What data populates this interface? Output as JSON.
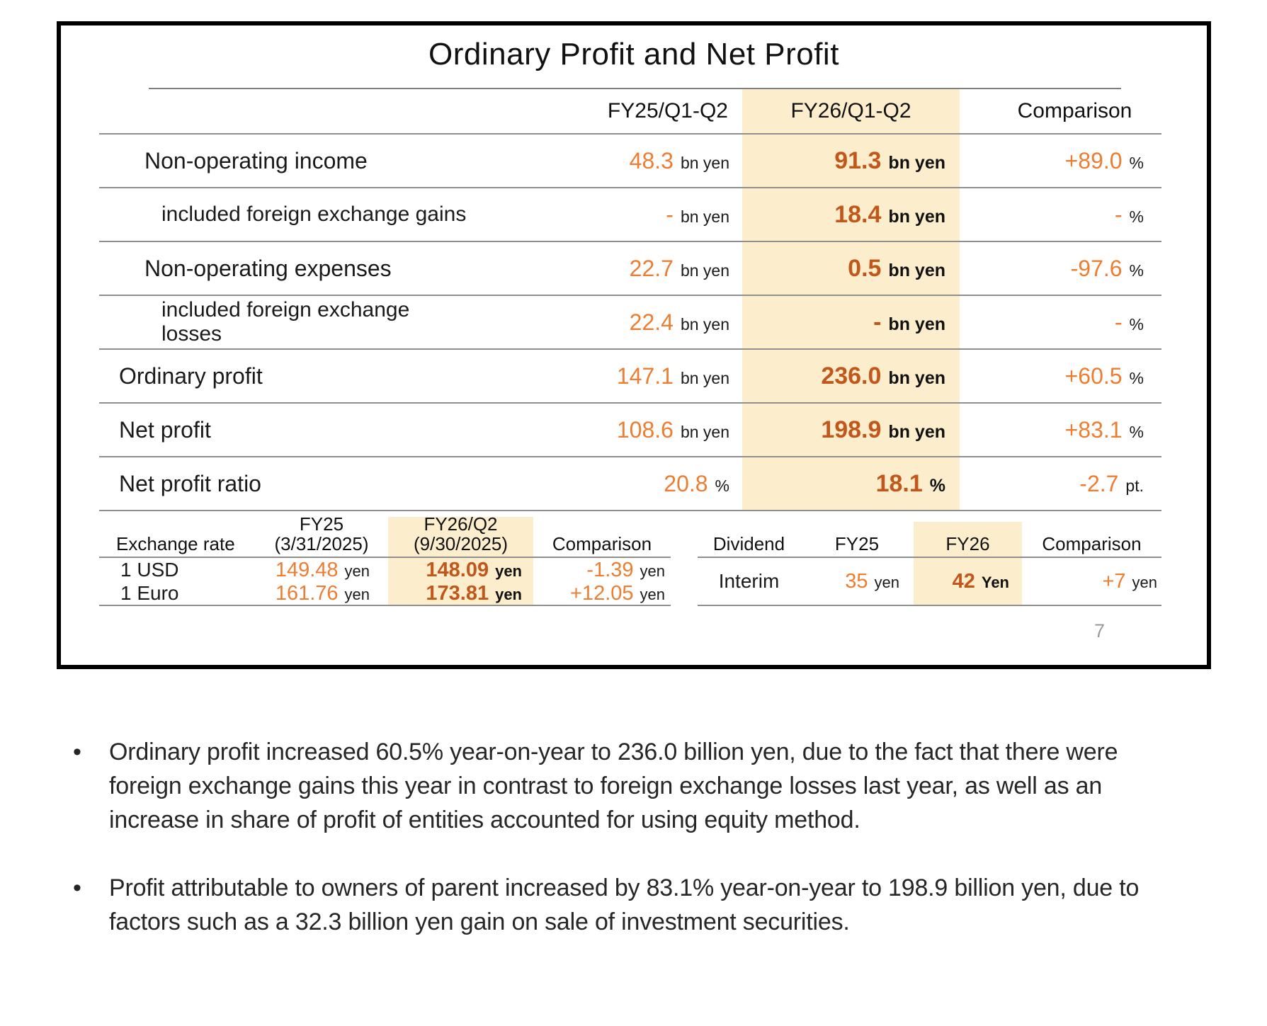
{
  "slide": {
    "title": "Ordinary Profit and Net Profit",
    "page_number": "7",
    "table": {
      "headers": {
        "fy25": "FY25/Q1-Q2",
        "fy26": "FY26/Q1-Q2",
        "cmp": "Comparison"
      },
      "rows": [
        {
          "label": "Non-operating income",
          "fy25": "48.3",
          "fy25_u": "bn yen",
          "fy26": "91.3",
          "fy26_u": "bn yen",
          "cmp": "+89.0",
          "cmp_u": "%"
        },
        {
          "label": "included foreign exchange gains",
          "fy25": "-",
          "fy25_u": "bn yen",
          "fy26": "18.4",
          "fy26_u": "bn yen",
          "cmp": "-",
          "cmp_u": "%"
        },
        {
          "label": "Non-operating expenses",
          "fy25": "22.7",
          "fy25_u": "bn yen",
          "fy26": "0.5",
          "fy26_u": "bn yen",
          "cmp": "-97.6",
          "cmp_u": "%"
        },
        {
          "label": "included foreign exchange losses",
          "fy25": "22.4",
          "fy25_u": "bn yen",
          "fy26": "-",
          "fy26_u": "bn yen",
          "cmp": "-",
          "cmp_u": "%"
        },
        {
          "label": "Ordinary profit",
          "fy25": "147.1",
          "fy25_u": "bn yen",
          "fy26": "236.0",
          "fy26_u": "bn yen",
          "cmp": "+60.5",
          "cmp_u": "%"
        },
        {
          "label": "Net profit",
          "fy25": "108.6",
          "fy25_u": "bn yen",
          "fy26": "198.9",
          "fy26_u": "bn yen",
          "cmp": "+83.1",
          "cmp_u": "%"
        },
        {
          "label": "Net profit ratio",
          "fy25": "20.8",
          "fy25_u": "%",
          "fy26": "18.1",
          "fy26_u": "%",
          "cmp": "-2.7",
          "cmp_u": "pt."
        }
      ]
    },
    "exchange": {
      "label": "Exchange rate",
      "headers": {
        "fy25_1": "FY25",
        "fy25_2": "(3/31/2025)",
        "fy26_1": "FY26/Q2",
        "fy26_2": "(9/30/2025)",
        "cmp": "Comparison"
      },
      "rows": [
        {
          "label": "1 USD",
          "fy25": "149.48",
          "fy25_u": "yen",
          "fy26": "148.09",
          "fy26_u": "yen",
          "cmp": "-1.39",
          "cmp_u": "yen"
        },
        {
          "label": "1 Euro",
          "fy25": "161.76",
          "fy25_u": "yen",
          "fy26": "173.81",
          "fy26_u": "yen",
          "cmp": "+12.05",
          "cmp_u": "yen"
        }
      ]
    },
    "dividend": {
      "label": "Dividend",
      "headers": {
        "fy25": "FY25",
        "fy26": "FY26",
        "cmp": "Comparison"
      },
      "rows": [
        {
          "label": "Interim",
          "fy25": "35",
          "fy25_u": "yen",
          "fy26": "42",
          "fy26_u": "Yen",
          "cmp": "+7",
          "cmp_u": "yen"
        }
      ]
    },
    "bullets": [
      "Ordinary profit increased 60.5% year-on-year to 236.0 billion yen, due to the fact that there were foreign exchange gains this year in contrast to foreign exchange losses last year, as well as an increase in share of profit of entities accounted for using equity method.",
      "Profit attributable to owners of parent increased by 83.1% year-on-year to 198.9 billion yen, due to factors such as a 32.3 billion yen gain on sale of investment securities."
    ]
  },
  "colors": {
    "value_orange": "#ED7D31",
    "value_dark_orange": "#C2571C",
    "highlight": "#FCEECD",
    "rule_gray": "#8F8F8F",
    "text_dark": "#1A1A1A",
    "page_gray": "#9A9A9A"
  }
}
